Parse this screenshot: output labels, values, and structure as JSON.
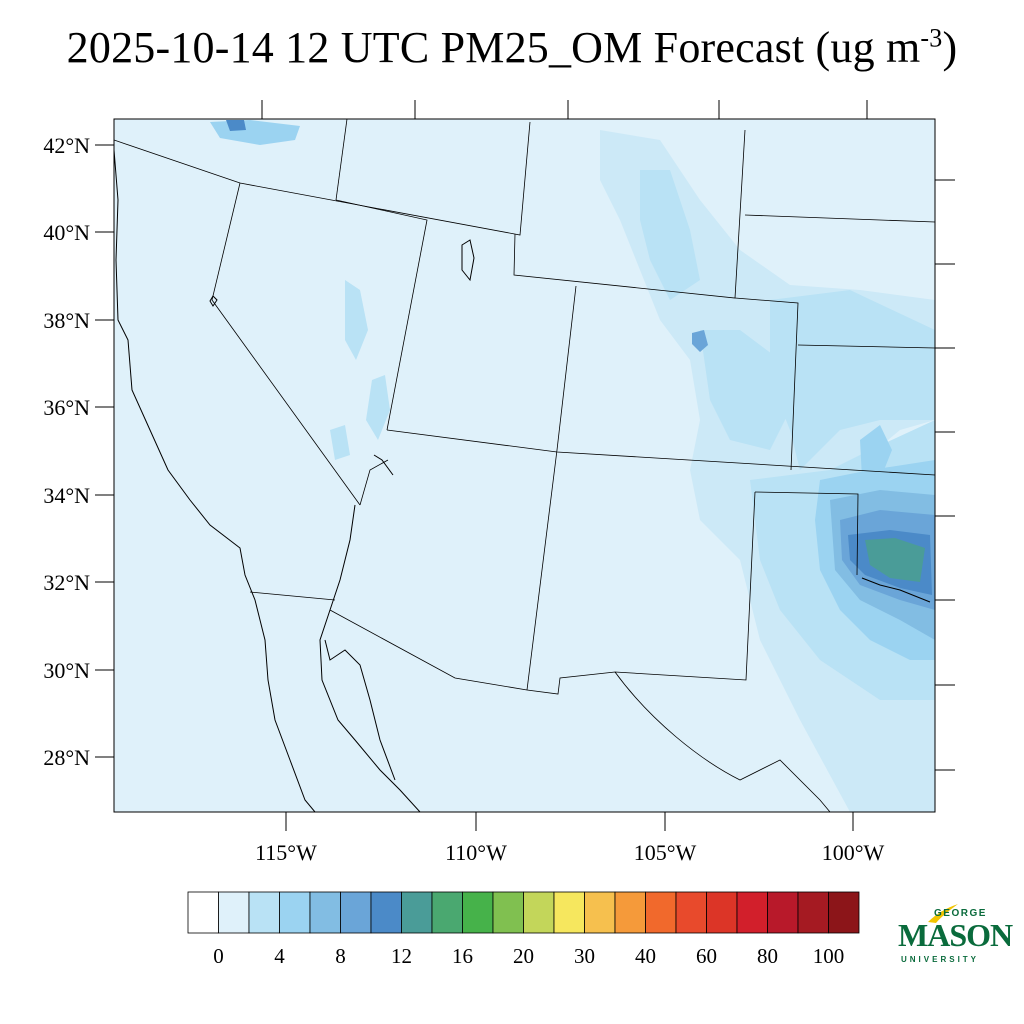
{
  "title": {
    "main": "2025-10-14 12 UTC PM25_OM Forecast (ug m",
    "exp": "-3",
    "close": ")"
  },
  "map": {
    "lat_labels": [
      "42°N",
      "40°N",
      "38°N",
      "36°N",
      "34°N",
      "32°N",
      "30°N",
      "28°N"
    ],
    "lon_labels": [
      "115°W",
      "110°W",
      "105°W",
      "100°W"
    ],
    "background_color": "#dff1fa"
  },
  "legend": {
    "colors": [
      "#ffffff",
      "#dff1fa",
      "#b9e2f5",
      "#9bd3f1",
      "#82bde3",
      "#6aa5d8",
      "#4b8ac8",
      "#4a9c98",
      "#4aa870",
      "#46b24a",
      "#80c050",
      "#c3d65a",
      "#f6e75e",
      "#f6c04e",
      "#f59a3a",
      "#f1692c",
      "#e84a2c",
      "#dc3527",
      "#d21f2b",
      "#b8192a",
      "#a51a22",
      "#8c1519"
    ],
    "labels": [
      "0",
      "4",
      "8",
      "12",
      "16",
      "20",
      "30",
      "40",
      "60",
      "80",
      "100"
    ]
  },
  "logo": {
    "line1": "GEORGE",
    "line2": "MASON",
    "line3": "UNIVERSITY",
    "color": "#0a6b3c"
  }
}
